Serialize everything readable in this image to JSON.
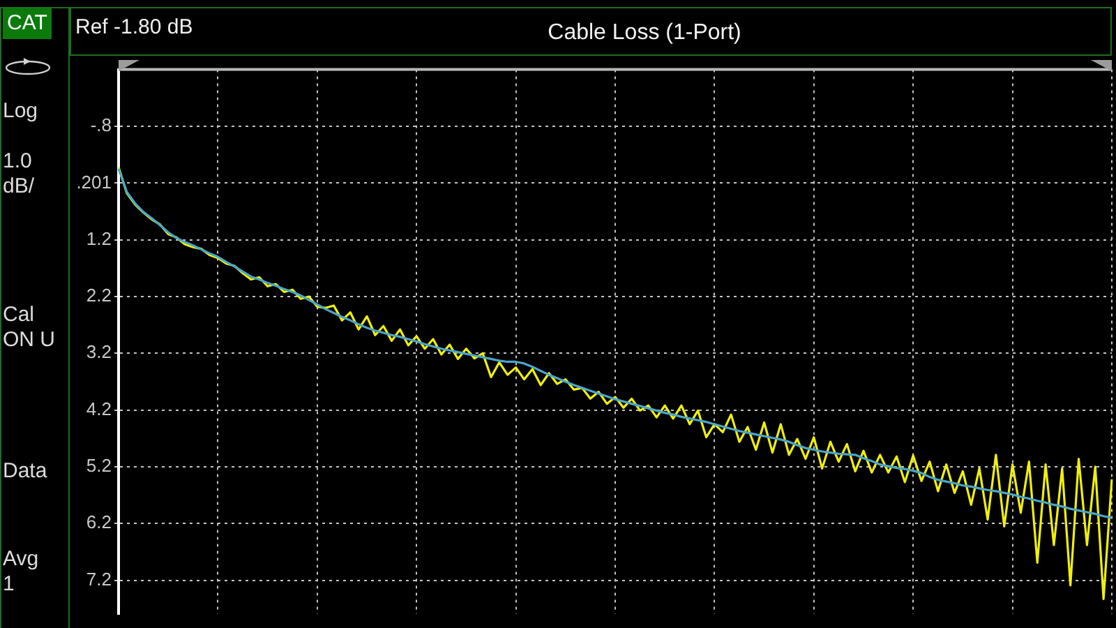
{
  "chart_data": {
    "type": "line",
    "title": "Cable Loss (1-Port)",
    "annotations": [
      "Ref -1.80 dB",
      "CAT",
      "Log",
      "1.0",
      "dB/",
      "Cal",
      "ON U",
      "Data",
      "Avg",
      "1"
    ],
    "categories": [
      null,
      null,
      null,
      null,
      null,
      null,
      null,
      null,
      null,
      null,
      null,
      null,
      null,
      null,
      null,
      null,
      null,
      null,
      null,
      null,
      null,
      null,
      null,
      null,
      null,
      null,
      null,
      null,
      null,
      null,
      null,
      null,
      null,
      null,
      null,
      null,
      null,
      null,
      null,
      null,
      null,
      null,
      null,
      null,
      null,
      null,
      null,
      null,
      null,
      null,
      null,
      null,
      null,
      null,
      null,
      null,
      null,
      null,
      null,
      null,
      null,
      null,
      null,
      null,
      null,
      null,
      null,
      null,
      null,
      null,
      null,
      null,
      null,
      null,
      null,
      null,
      null,
      null,
      null,
      null,
      null,
      null,
      null,
      null,
      null,
      null,
      null,
      null,
      null,
      null,
      null,
      null,
      null,
      null,
      null,
      null,
      null,
      null,
      null,
      null,
      null,
      null,
      null,
      null,
      null,
      null,
      null,
      null,
      null,
      null,
      null,
      null,
      null,
      null,
      null,
      null,
      null,
      null,
      null,
      null,
      null
    ],
    "series": [
      {
        "color": "#f0f00a",
        "values": [
          -0.08,
          0.38,
          0.58,
          0.72,
          0.84,
          0.93,
          1.1,
          1.16,
          1.28,
          1.33,
          1.36,
          1.47,
          1.52,
          1.62,
          1.66,
          1.79,
          1.9,
          1.86,
          2.02,
          1.98,
          2.12,
          2.08,
          2.24,
          2.2,
          2.38,
          2.4,
          2.36,
          2.62,
          2.48,
          2.78,
          2.55,
          2.88,
          2.72,
          2.98,
          2.78,
          3.06,
          2.9,
          3.12,
          2.95,
          3.22,
          3.05,
          3.3,
          3.12,
          3.29,
          3.2,
          3.62,
          3.36,
          3.58,
          3.45,
          3.66,
          3.48,
          3.76,
          3.55,
          3.74,
          3.66,
          3.84,
          3.81,
          4.0,
          3.88,
          4.09,
          3.97,
          4.16,
          4.0,
          4.21,
          4.12,
          4.33,
          4.12,
          4.35,
          4.12,
          4.45,
          4.21,
          4.68,
          4.45,
          4.59,
          4.28,
          4.76,
          4.5,
          4.9,
          4.42,
          4.95,
          4.45,
          4.99,
          4.71,
          5.06,
          4.68,
          5.23,
          4.76,
          5.11,
          4.8,
          5.28,
          4.92,
          5.3,
          4.99,
          5.3,
          5.02,
          5.47,
          5.0,
          5.45,
          5.11,
          5.63,
          5.16,
          5.66,
          5.28,
          5.87,
          5.23,
          6.13,
          4.99,
          6.25,
          5.16,
          6.01,
          5.11,
          6.89,
          5.16,
          6.58,
          5.23,
          7.29,
          5.06,
          6.58,
          5.2,
          7.53,
          5.42
        ]
      },
      {
        "color": "#4aa6c8",
        "values": [
          -0.05,
          0.36,
          0.56,
          0.71,
          0.82,
          0.94,
          1.07,
          1.17,
          1.24,
          1.3,
          1.37,
          1.44,
          1.5,
          1.59,
          1.67,
          1.76,
          1.85,
          1.9,
          1.96,
          2.01,
          2.07,
          2.12,
          2.18,
          2.26,
          2.34,
          2.42,
          2.49,
          2.56,
          2.62,
          2.69,
          2.75,
          2.8,
          2.84,
          2.88,
          2.91,
          2.95,
          2.99,
          3.04,
          3.08,
          3.12,
          3.15,
          3.18,
          3.21,
          3.24,
          3.27,
          3.3,
          3.33,
          3.35,
          3.35,
          3.38,
          3.44,
          3.51,
          3.58,
          3.64,
          3.7,
          3.76,
          3.81,
          3.86,
          3.91,
          3.96,
          4.01,
          4.05,
          4.09,
          4.13,
          4.17,
          4.21,
          4.25,
          4.28,
          4.32,
          4.35,
          4.38,
          4.41,
          4.45,
          4.49,
          4.53,
          4.57,
          4.6,
          4.63,
          4.66,
          4.69,
          4.72,
          4.76,
          4.82,
          4.87,
          4.9,
          4.93,
          4.95,
          4.97,
          4.98,
          4.99,
          5.05,
          5.1,
          5.16,
          5.19,
          5.22,
          5.24,
          5.27,
          5.31,
          5.38,
          5.43,
          5.46,
          5.49,
          5.53,
          5.55,
          5.58,
          5.61,
          5.63,
          5.66,
          5.69,
          5.73,
          5.76,
          5.8,
          5.83,
          5.87,
          5.9,
          5.94,
          5.97,
          6.0,
          6.03,
          6.07,
          6.1
        ]
      }
    ],
    "ylim": [
      7.8,
      -1.8
    ],
    "yticks": [
      {
        "value": -0.8,
        "label": "-.8"
      },
      {
        "value": 0.201,
        "label": ".201"
      },
      1.2,
      2.2,
      3.2,
      4.2,
      5.2,
      6.2,
      7.2
    ],
    "grid": true,
    "tick_labels": "y"
  }
}
